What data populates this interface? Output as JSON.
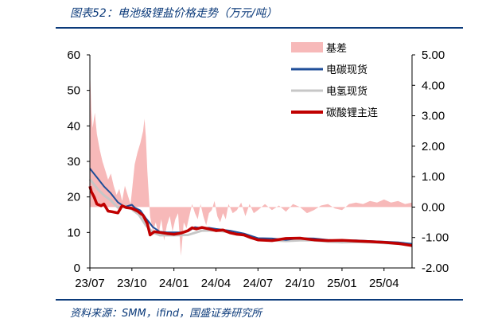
{
  "header": {
    "title": "图表52：电池级锂盐价格走势（万元/吨）"
  },
  "footer": {
    "source": "资料来源：SMM，ifind，国盛证券研究所"
  },
  "colors": {
    "basis": "#f7b9b9",
    "carbon_spot": "#1f4e99",
    "hydroxide_spot": "#c7c7c7",
    "futures": "#c00000",
    "brand": "#0b3a7a"
  },
  "chart_data": {
    "type": "line",
    "title": "电池级锂盐价格走势（万元/吨）",
    "x_ticks": [
      "23/07",
      "23/10",
      "24/01",
      "24/04",
      "24/07",
      "24/10",
      "25/01",
      "25/04"
    ],
    "x_range": [
      "2023-07",
      "2025-05"
    ],
    "y_left": {
      "ticks": [
        "0",
        "10",
        "20",
        "30",
        "40",
        "50",
        "60"
      ],
      "ylim": [
        0,
        60
      ]
    },
    "y_right": {
      "ticks": [
        "-2.00",
        "-1.00",
        "0.00",
        "1.00",
        "2.00",
        "3.00",
        "4.00",
        "5.00"
      ],
      "ylim": [
        -2,
        5
      ]
    },
    "legend": [
      "基差",
      "电碳现货",
      "电氢现货",
      "碳酸锂主连"
    ],
    "legend_position": "top-right",
    "series": [
      {
        "name": "电碳现货",
        "axis": "left",
        "x": [
          0,
          0.2,
          0.6,
          1.0,
          1.5,
          2.0,
          2.5,
          3.0,
          3.2,
          3.6,
          4.0,
          4.2,
          4.5,
          5.0,
          5.5,
          6.0,
          6.5,
          7.0,
          7.5,
          8.0,
          8.5,
          9.0,
          10,
          11,
          12,
          13,
          14,
          15,
          16,
          17,
          18,
          19,
          20,
          21,
          22,
          23
        ],
        "values": [
          28,
          27,
          25,
          23,
          21,
          18.5,
          17.2,
          17.8,
          17,
          16.2,
          14,
          13,
          11.5,
          10.2,
          10,
          10,
          10,
          10.3,
          11.5,
          11.2,
          11.3,
          11,
          10.5,
          9.7,
          8.4,
          8.3,
          7.9,
          8.4,
          8.3,
          7.9,
          7.7,
          7.8,
          7.6,
          7.4,
          7.2,
          6.8
        ]
      },
      {
        "name": "电氢现货",
        "axis": "left",
        "x": [
          0,
          0.2,
          0.6,
          1.0,
          1.5,
          2.0,
          2.5,
          3.0,
          3.5,
          4.0,
          4.5,
          5.0,
          6.0,
          7.0,
          8.0,
          9.0,
          10,
          11,
          12,
          13,
          14,
          15,
          16,
          17,
          18,
          19,
          20,
          21,
          22,
          23
        ],
        "values": [
          25,
          24,
          22,
          20.5,
          19,
          17,
          17.5,
          16.5,
          15,
          12,
          10,
          9.2,
          9.2,
          9.3,
          10.5,
          10.6,
          10.0,
          9.2,
          7.9,
          7.8,
          7.6,
          7.8,
          7.8,
          7.4,
          7.2,
          7.3,
          7.2,
          7.0,
          6.8,
          6.5
        ]
      },
      {
        "name": "碳酸锂主连",
        "axis": "left",
        "x": [
          0,
          0.1,
          0.3,
          0.5,
          0.8,
          1.0,
          1.3,
          1.6,
          2.0,
          2.3,
          2.6,
          3.0,
          3.4,
          3.8,
          4.1,
          4.3,
          4.6,
          5.0,
          5.5,
          6.0,
          6.5,
          7.0,
          7.3,
          7.6,
          8.0,
          8.5,
          9.0,
          9.5,
          10.0,
          10.5,
          11.0,
          11.5,
          12.0,
          13.0,
          14.0,
          15.0,
          16.0,
          17.0,
          18.0,
          19.0,
          20.0,
          21.0,
          22.0,
          23.0
        ],
        "values": [
          23,
          21.5,
          20,
          18,
          17.5,
          18,
          16,
          15.8,
          15.5,
          17.5,
          17,
          16.8,
          16,
          14.8,
          12.5,
          9.3,
          10.2,
          10.0,
          9.7,
          9.5,
          9.8,
          10.5,
          11.3,
          11.0,
          11.4,
          11.0,
          10.5,
          10.7,
          9.9,
          9.5,
          9.3,
          8.5,
          7.9,
          7.7,
          8.3,
          8.4,
          7.9,
          7.7,
          7.8,
          7.6,
          7.4,
          7.2,
          6.9,
          6.3
        ]
      },
      {
        "name": "基差",
        "axis": "right",
        "kind": "area",
        "x": [
          0,
          0.1,
          0.2,
          0.35,
          0.5,
          0.7,
          0.9,
          1.1,
          1.3,
          1.5,
          1.7,
          1.9,
          2.1,
          2.3,
          2.5,
          2.7,
          2.9,
          3.0,
          3.2,
          3.4,
          3.6,
          3.8,
          3.9,
          4.0,
          4.1,
          4.3,
          4.5,
          4.7,
          4.9,
          5.1,
          5.3,
          5.5,
          5.7,
          5.9,
          6.1,
          6.3,
          6.5,
          6.7,
          6.9,
          7.1,
          7.3,
          7.5,
          7.7,
          7.9,
          8.1,
          8.3,
          8.5,
          8.7,
          8.9,
          9.1,
          9.3,
          9.5,
          9.7,
          9.9,
          10.2,
          10.5,
          10.8,
          11.1,
          11.4,
          11.7,
          12.0,
          12.5,
          13.0,
          13.5,
          14.0,
          14.5,
          15.0,
          15.5,
          16.0,
          16.5,
          17.0,
          17.5,
          18.0,
          18.5,
          19.0,
          19.5,
          20.0,
          20.5,
          21.0,
          21.5,
          22.0,
          22.5,
          23.0
        ],
        "values": [
          4.6,
          3.2,
          2.6,
          3.1,
          2.4,
          1.9,
          1.5,
          1.2,
          0.9,
          1.1,
          0.7,
          0.4,
          0.6,
          0.2,
          0.7,
          0.4,
          0.1,
          0.5,
          1.4,
          1.8,
          2.1,
          2.5,
          2.9,
          2.3,
          1.2,
          -0.3,
          -0.8,
          -0.5,
          -0.9,
          -0.4,
          -1.1,
          -0.6,
          -0.3,
          -0.8,
          -0.4,
          -0.2,
          -1.6,
          -0.5,
          -0.7,
          -0.3,
          0.1,
          -0.2,
          -0.4,
          0.1,
          -0.3,
          -0.6,
          -0.2,
          -0.1,
          0.2,
          -0.3,
          -0.5,
          -0.2,
          -0.4,
          0.1,
          -0.2,
          -0.1,
          0.15,
          -0.3,
          0.1,
          -0.2,
          -0.1,
          0.1,
          -0.1,
          0.05,
          -0.15,
          0.1,
          0.0,
          -0.2,
          -0.1,
          0.05,
          0.1,
          -0.05,
          -0.1,
          0.1,
          0.15,
          0.1,
          0.2,
          0.15,
          0.25,
          0.15,
          0.2,
          0.1,
          0.15
        ]
      }
    ]
  }
}
